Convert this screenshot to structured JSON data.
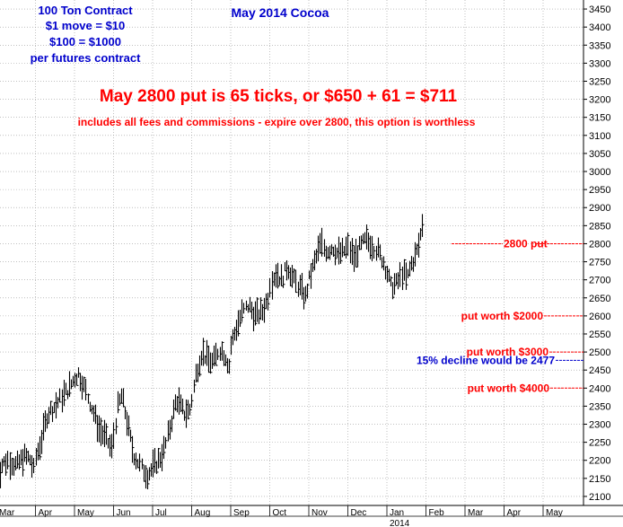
{
  "chart_data": {
    "type": "bar",
    "subtype": "ohlc-high-low",
    "title": "May 2014 Cocoa",
    "contract_notes": [
      "100 Ton Contract",
      "$1 move = $10",
      "$100 = $1000",
      "per futures contract"
    ],
    "headline": "May 2800 put is 65 ticks, or $650 + 61 = $711",
    "subheadline": "includes all fees and commissions - expire over 2800, this option is worthless",
    "y_axis": {
      "position": "right",
      "ylim": [
        2075,
        3475
      ],
      "ticks": [
        2100,
        2150,
        2200,
        2250,
        2300,
        2350,
        2400,
        2450,
        2500,
        2550,
        2600,
        2650,
        2700,
        2750,
        2800,
        2850,
        2900,
        2950,
        3000,
        3050,
        3100,
        3150,
        3200,
        3250,
        3300,
        3350,
        3400,
        3450
      ]
    },
    "x_axis": {
      "months": [
        "Mar",
        "Apr",
        "May",
        "Jun",
        "Jul",
        "Aug",
        "Sep",
        "Oct",
        "Nov",
        "Dec",
        "Jan",
        "Feb",
        "Mar",
        "Apr",
        "May"
      ],
      "year_label": "2014",
      "year_label_month_index": 10
    },
    "grid": true,
    "reference_lines": [
      {
        "label": "2800 put",
        "value": 2800,
        "color": "#ff0000"
      },
      {
        "label": "put worth $2000",
        "value": 2600,
        "color": "#ff0000"
      },
      {
        "label": "put worth $3000",
        "value": 2500,
        "color": "#ff0000"
      },
      {
        "label": "15% decline would be 2477",
        "value": 2477,
        "color": "#0000cc"
      },
      {
        "label": "put worth $4000",
        "value": 2400,
        "color": "#ff0000"
      }
    ],
    "price_path": {
      "description_units": "month index (0 = start of Mar 2013) vs price",
      "points": [
        [
          0.0,
          2140
        ],
        [
          0.15,
          2190
        ],
        [
          0.3,
          2200
        ],
        [
          0.5,
          2185
        ],
        [
          0.7,
          2210
        ],
        [
          0.85,
          2205
        ],
        [
          0.95,
          2170
        ],
        [
          1.0,
          2210
        ],
        [
          1.15,
          2260
        ],
        [
          1.3,
          2330
        ],
        [
          1.5,
          2350
        ],
        [
          1.7,
          2380
        ],
        [
          1.85,
          2400
        ],
        [
          2.0,
          2430
        ],
        [
          2.1,
          2440
        ],
        [
          2.25,
          2400
        ],
        [
          2.45,
          2340
        ],
        [
          2.6,
          2290
        ],
        [
          2.8,
          2260
        ],
        [
          2.95,
          2230
        ],
        [
          3.0,
          2270
        ],
        [
          3.1,
          2350
        ],
        [
          3.2,
          2380
        ],
        [
          3.35,
          2300
        ],
        [
          3.5,
          2220
        ],
        [
          3.7,
          2180
        ],
        [
          3.85,
          2160
        ],
        [
          4.0,
          2180
        ],
        [
          4.15,
          2200
        ],
        [
          4.3,
          2230
        ],
        [
          4.45,
          2300
        ],
        [
          4.6,
          2370
        ],
        [
          4.8,
          2330
        ],
        [
          4.95,
          2340
        ],
        [
          5.0,
          2370
        ],
        [
          5.1,
          2440
        ],
        [
          5.25,
          2500
        ],
        [
          5.4,
          2480
        ],
        [
          5.55,
          2470
        ],
        [
          5.7,
          2510
        ],
        [
          5.85,
          2490
        ],
        [
          5.95,
          2460
        ],
        [
          6.0,
          2520
        ],
        [
          6.15,
          2570
        ],
        [
          6.3,
          2610
        ],
        [
          6.45,
          2630
        ],
        [
          6.6,
          2600
        ],
        [
          6.8,
          2610
        ],
        [
          6.95,
          2650
        ],
        [
          7.0,
          2690
        ],
        [
          7.15,
          2720
        ],
        [
          7.3,
          2700
        ],
        [
          7.45,
          2740
        ],
        [
          7.6,
          2700
        ],
        [
          7.75,
          2680
        ],
        [
          7.9,
          2650
        ],
        [
          8.0,
          2700
        ],
        [
          8.15,
          2750
        ],
        [
          8.3,
          2800
        ],
        [
          8.45,
          2780
        ],
        [
          8.6,
          2790
        ],
        [
          8.75,
          2770
        ],
        [
          8.9,
          2780
        ],
        [
          9.0,
          2790
        ],
        [
          9.15,
          2760
        ],
        [
          9.3,
          2790
        ],
        [
          9.45,
          2810
        ],
        [
          9.6,
          2800
        ],
        [
          9.75,
          2780
        ],
        [
          9.9,
          2750
        ],
        [
          10.0,
          2720
        ],
        [
          10.1,
          2680
        ],
        [
          10.25,
          2690
        ],
        [
          10.4,
          2720
        ],
        [
          10.5,
          2700
        ],
        [
          10.6,
          2740
        ],
        [
          10.7,
          2760
        ],
        [
          10.8,
          2790
        ],
        [
          10.9,
          2850
        ],
        [
          10.95,
          2920
        ]
      ]
    }
  }
}
